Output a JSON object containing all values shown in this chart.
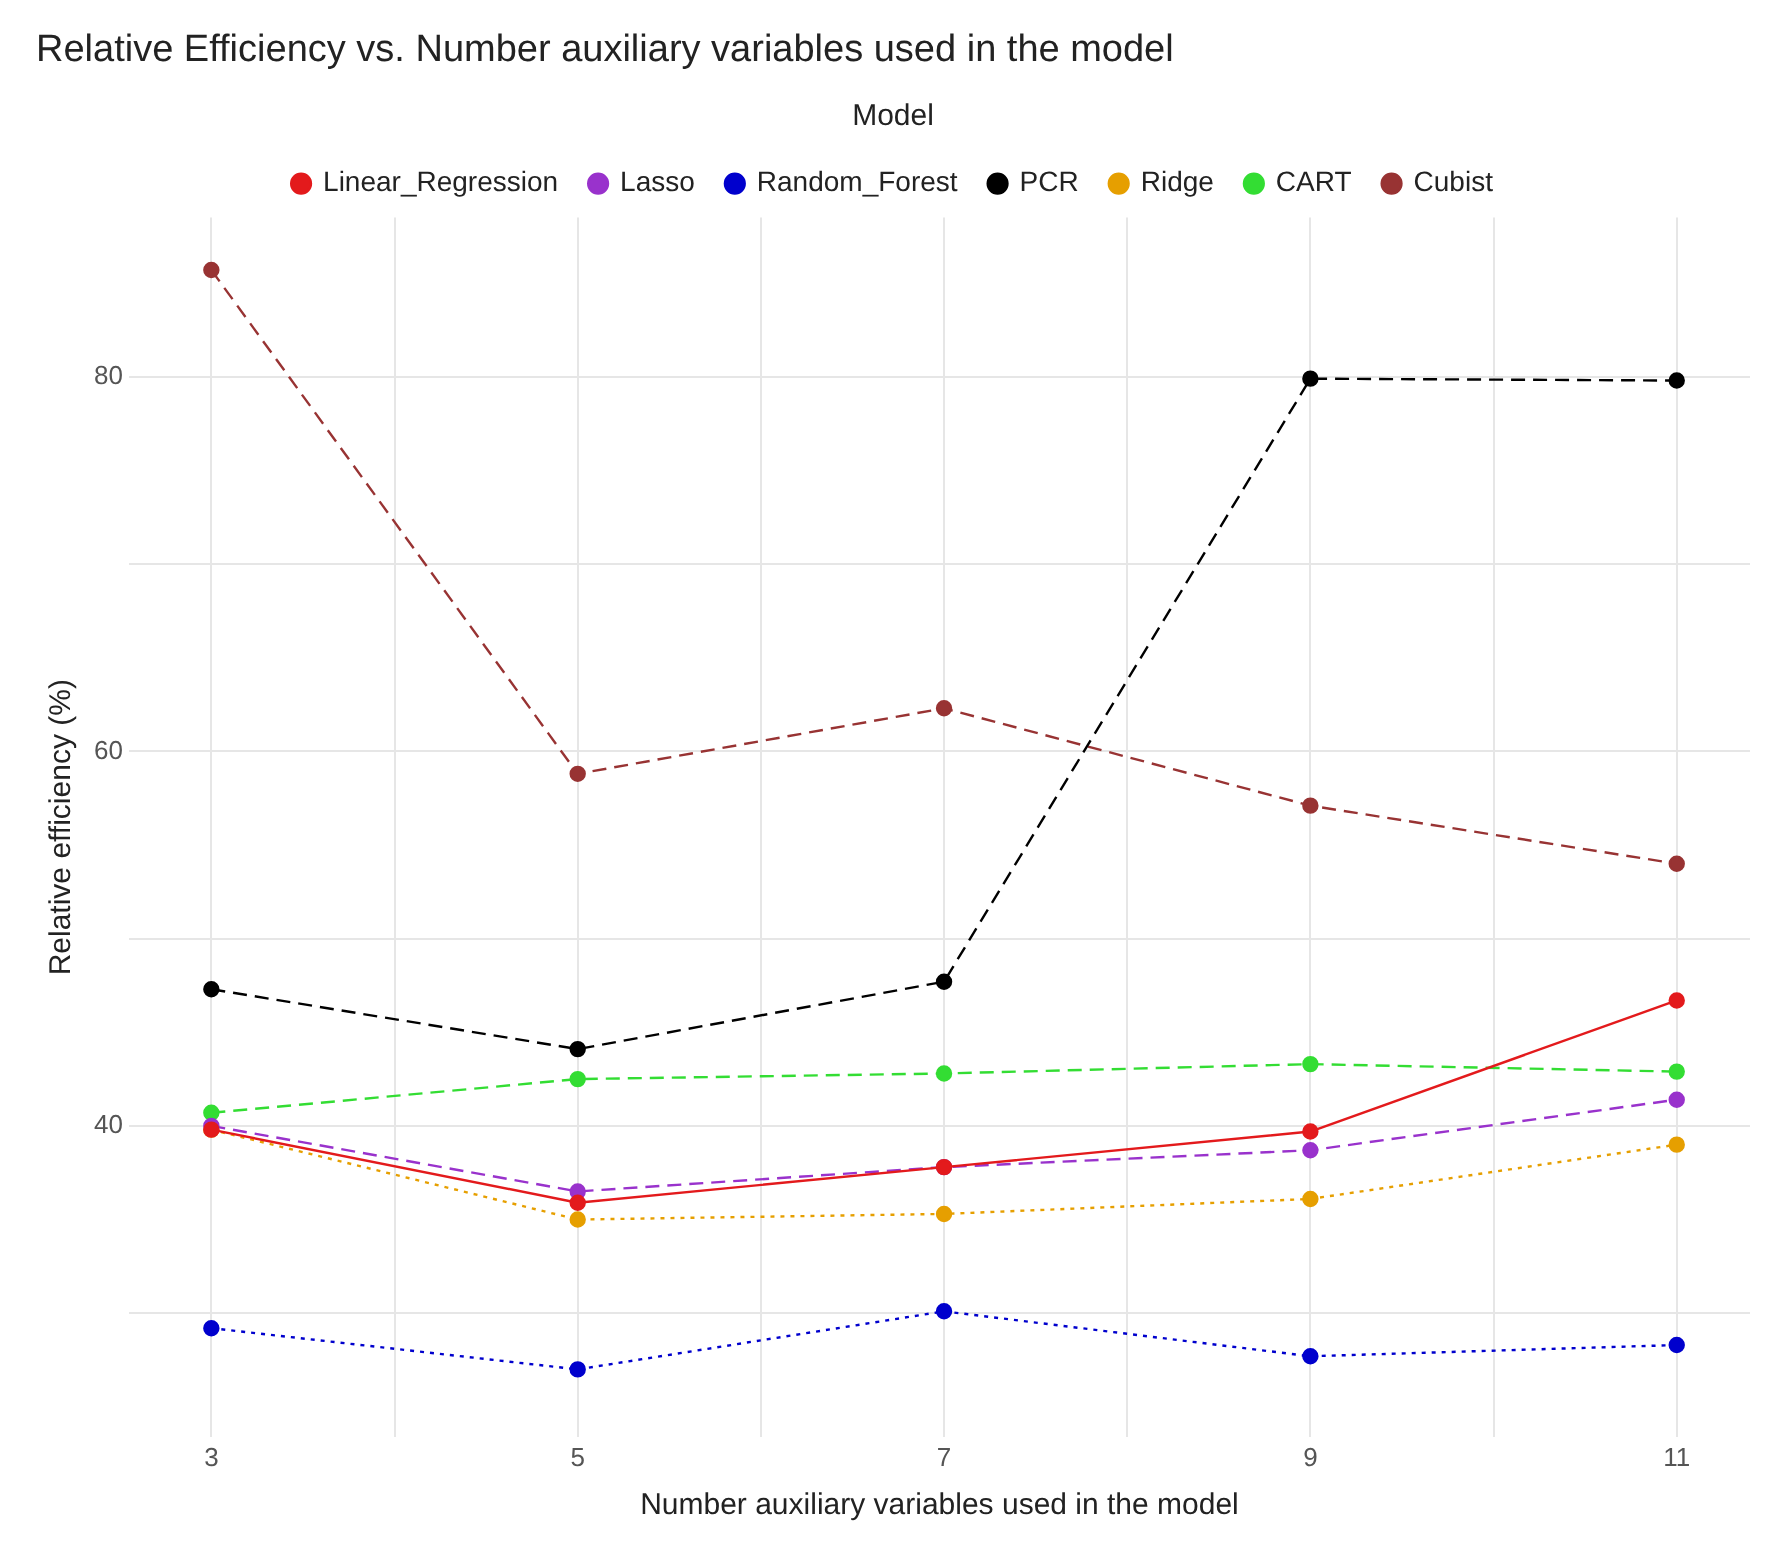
{
  "chart_data": {
    "type": "line",
    "title": "Relative Efficiency vs. Number auxiliary variables used in the model",
    "xlabel": "Number auxiliary variables used in the model",
    "ylabel": "Relative efficiency (%)",
    "legend_title": "Model",
    "legend": "top",
    "grid": true,
    "marker": "circle",
    "x": [
      3,
      5,
      7,
      9,
      11
    ],
    "xlim": [
      2.55,
      11.4
    ],
    "xticks": [
      3,
      {
        "value": 4,
        "label": null
      },
      5,
      {
        "value": 6,
        "label": null
      },
      7,
      {
        "value": 8,
        "label": null
      },
      9,
      {
        "value": 10,
        "label": null
      },
      11
    ],
    "ylim": [
      23.4,
      88.5
    ],
    "yticks": [
      {
        "value": 30,
        "label": null
      },
      40,
      {
        "value": 50,
        "label": null
      },
      60,
      {
        "value": 70,
        "label": null
      },
      80
    ],
    "series": [
      {
        "name": "Linear_Regression",
        "color": "#e31a1c",
        "line_style": "solid",
        "values": [
          39.8,
          35.9,
          37.8,
          39.7,
          46.7
        ]
      },
      {
        "name": "Lasso",
        "color": "#9932cc",
        "line_style": "dashed",
        "values": [
          40.0,
          36.5,
          37.8,
          38.7,
          41.4
        ]
      },
      {
        "name": "Random_Forest",
        "color": "#0000cd",
        "line_style": "dotted",
        "values": [
          29.2,
          27.0,
          30.1,
          27.7,
          28.3
        ]
      },
      {
        "name": "PCR",
        "color": "#000000",
        "line_style": "dashed",
        "values": [
          47.3,
          44.1,
          47.7,
          79.9,
          79.8
        ]
      },
      {
        "name": "Ridge",
        "color": "#e69f00",
        "line_style": "dotted",
        "values": [
          39.8,
          35.0,
          35.3,
          36.1,
          39.0
        ]
      },
      {
        "name": "CART",
        "color": "#33dd33",
        "line_style": "dashed",
        "values": [
          40.7,
          42.5,
          42.8,
          43.3,
          42.9
        ]
      },
      {
        "name": "Cubist",
        "color": "#983333",
        "line_style": "dashed",
        "values": [
          85.7,
          58.8,
          62.3,
          57.1,
          54.0
        ]
      }
    ]
  }
}
